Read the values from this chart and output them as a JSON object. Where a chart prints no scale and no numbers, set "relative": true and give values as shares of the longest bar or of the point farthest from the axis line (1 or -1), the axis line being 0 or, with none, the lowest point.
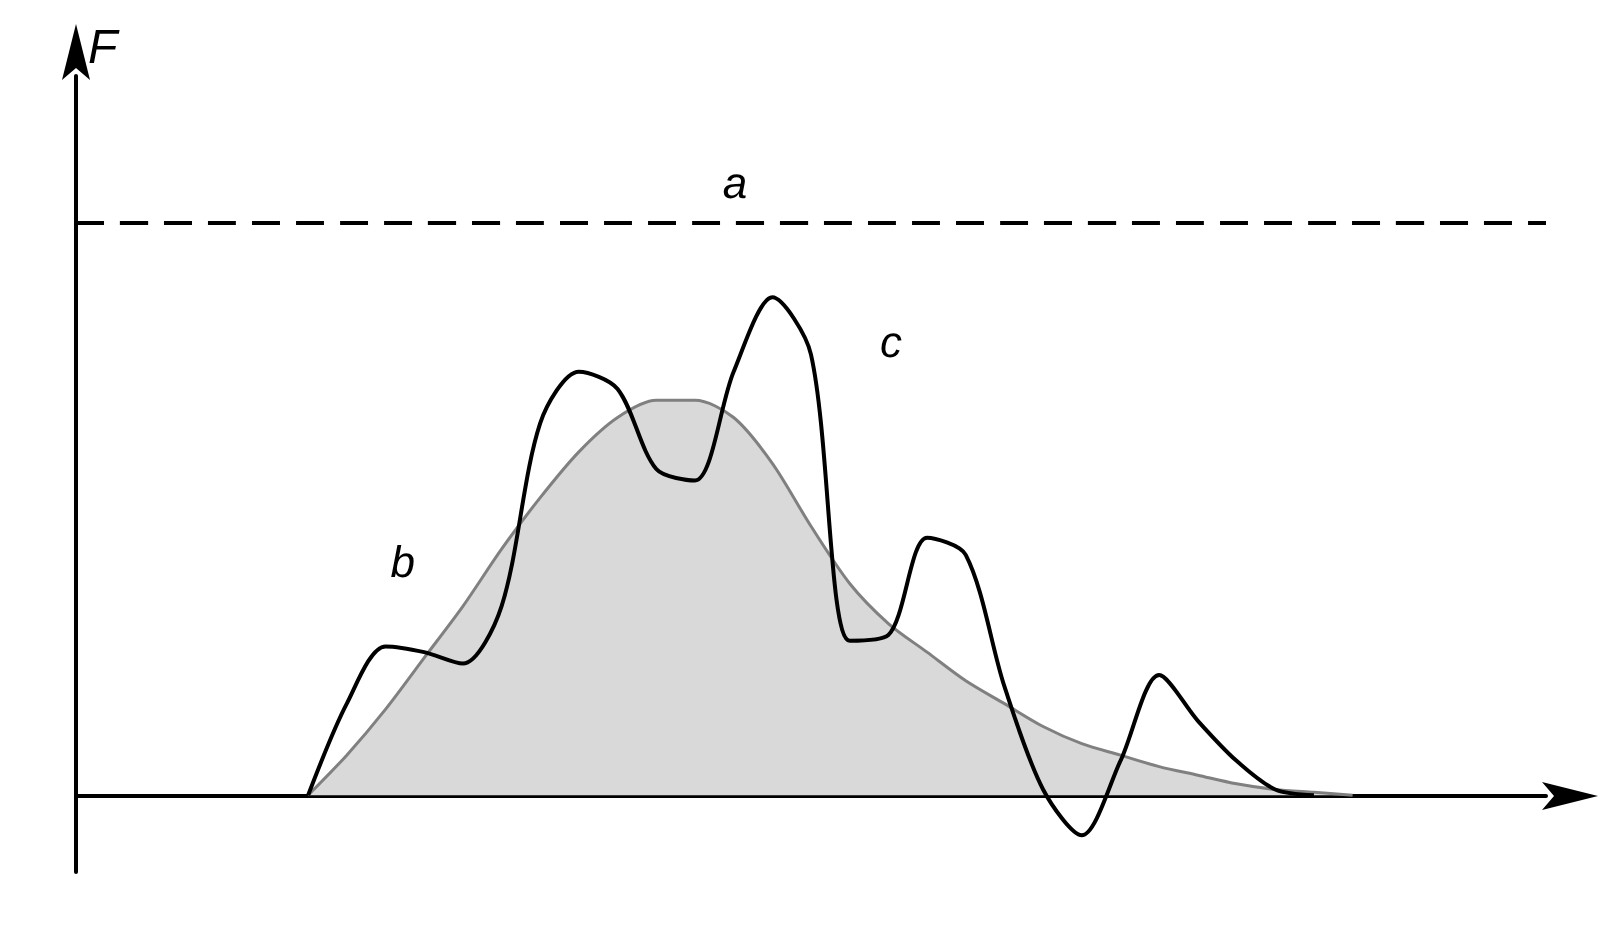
{
  "chart_data": {
    "type": "line",
    "relative": true,
    "ylabel": "F",
    "legend": false,
    "grid": false,
    "categories": [
      null,
      null,
      null,
      null,
      null,
      null,
      null,
      null,
      null,
      null,
      null,
      null,
      null,
      null,
      null,
      null,
      null,
      null,
      null,
      null,
      null,
      null,
      null,
      null,
      null,
      null,
      null,
      null,
      null,
      null,
      null,
      null,
      null,
      null,
      null,
      null,
      null,
      null,
      null
    ],
    "series": [
      {
        "name": "a",
        "color": "#000000",
        "line_style": "dashed",
        "values": [
          1,
          1,
          1,
          1,
          1,
          1,
          1,
          1,
          1,
          1,
          1,
          1,
          1,
          1,
          1,
          1,
          1,
          1,
          1,
          1,
          1,
          1,
          1,
          1,
          1,
          1,
          1,
          1,
          1,
          1,
          1,
          1,
          1,
          1,
          1,
          1,
          1,
          1,
          1
        ]
      },
      {
        "name": "b",
        "type": "area",
        "color": "#808080",
        "values": [
          null,
          null,
          null,
          null,
          null,
          null,
          0,
          0.07,
          0.15,
          0.24,
          0.33,
          0.43,
          0.52,
          0.6,
          0.66,
          0.69,
          0.69,
          0.66,
          0.58,
          0.47,
          0.37,
          0.3,
          0.25,
          0.2,
          0.16,
          0.12,
          0.09,
          0.07,
          0.05,
          0.035,
          0.02,
          0.01,
          0.005,
          0,
          null,
          null,
          null,
          null,
          null
        ]
      },
      {
        "name": "c",
        "color": "#000000",
        "values": [
          null,
          null,
          null,
          null,
          null,
          null,
          0,
          0.16,
          0.26,
          0.25,
          0.23,
          0.33,
          0.65,
          0.74,
          0.71,
          0.57,
          0.55,
          0.74,
          0.87,
          0.77,
          0.27,
          0.28,
          0.45,
          0.42,
          0.19,
          0.01,
          -0.07,
          0.06,
          0.21,
          0.13,
          0.06,
          0.01,
          0,
          null,
          null,
          null,
          null,
          null,
          null
        ]
      }
    ]
  }
}
